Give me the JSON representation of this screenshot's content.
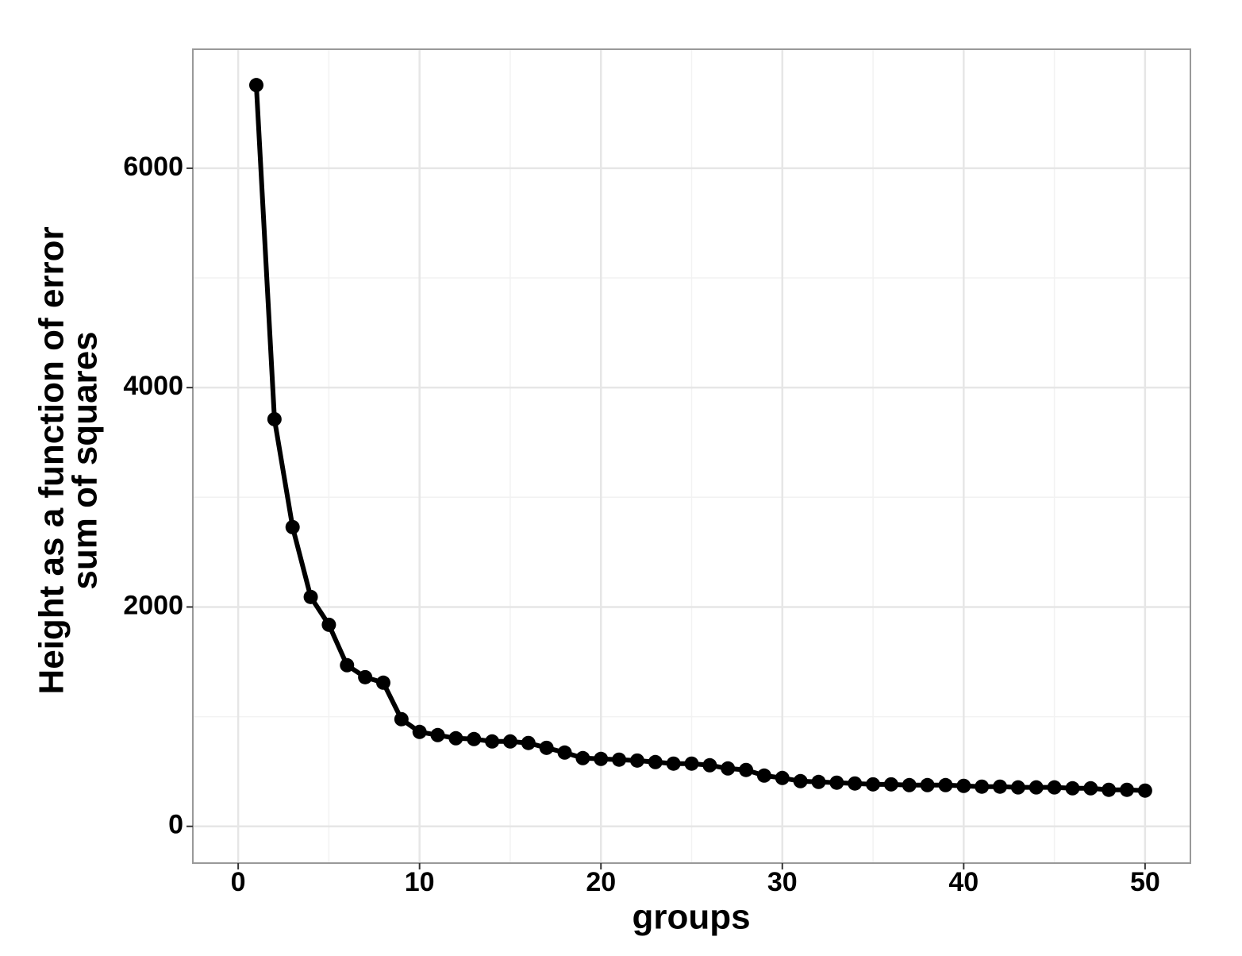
{
  "chart_data": {
    "type": "line",
    "xlabel": "groups",
    "ylabel": [
      "Height as a function of error",
      "sum of squares"
    ],
    "x": [
      1,
      2,
      3,
      4,
      5,
      6,
      7,
      8,
      9,
      10,
      11,
      12,
      13,
      14,
      15,
      16,
      17,
      18,
      19,
      20,
      21,
      22,
      23,
      24,
      25,
      26,
      27,
      28,
      29,
      30,
      31,
      32,
      33,
      34,
      35,
      36,
      37,
      38,
      39,
      40,
      41,
      42,
      43,
      44,
      45,
      46,
      47,
      48,
      49,
      50
    ],
    "series": [
      {
        "name": "height",
        "color": "#000000",
        "values": [
          6758,
          3712,
          2728,
          2091,
          1838,
          1469,
          1360,
          1310,
          977,
          861,
          832,
          803,
          796,
          774,
          774,
          760,
          716,
          673,
          622,
          615,
          608,
          600,
          586,
          572,
          572,
          557,
          528,
          514,
          463,
          441,
          412,
          405,
          398,
          391,
          383,
          383,
          376,
          376,
          376,
          369,
          362,
          362,
          355,
          355,
          355,
          347,
          347,
          333,
          333,
          326
        ]
      }
    ],
    "xlim": [
      -2.5,
      52.5
    ],
    "ylim": [
      -335,
      7085
    ],
    "xticks": [
      0,
      10,
      20,
      30,
      40,
      50
    ],
    "yticks": [
      0,
      2000,
      4000,
      6000
    ],
    "minor_xticks": [
      5,
      15,
      25,
      35,
      45
    ],
    "minor_yticks": [
      1000,
      3000,
      5000
    ],
    "grid": true
  }
}
